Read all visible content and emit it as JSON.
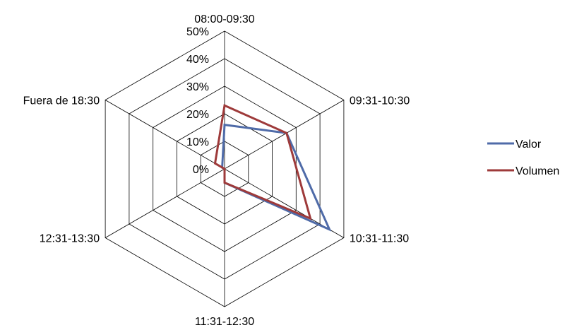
{
  "chart_data": {
    "type": "radar",
    "categories": [
      "08:00-09:30",
      "09:31-10:30",
      "10:31-11:30",
      "11:31-12:30",
      "12:31-13:30",
      "Fuera de 18:30"
    ],
    "r_ticks": [
      0,
      10,
      20,
      30,
      40,
      50
    ],
    "r_tick_labels": [
      "0%",
      "10%",
      "20%",
      "30%",
      "40%",
      "50%"
    ],
    "r_range": [
      0,
      50
    ],
    "grid": true,
    "legend_position": "right",
    "series": [
      {
        "name": "Valor",
        "color": "#4F6BA8",
        "values": [
          16,
          26,
          44,
          5,
          0,
          1
        ]
      },
      {
        "name": "Volumen",
        "color": "#9E3A3A",
        "values": [
          23,
          26,
          36,
          5,
          0,
          4
        ]
      }
    ]
  }
}
